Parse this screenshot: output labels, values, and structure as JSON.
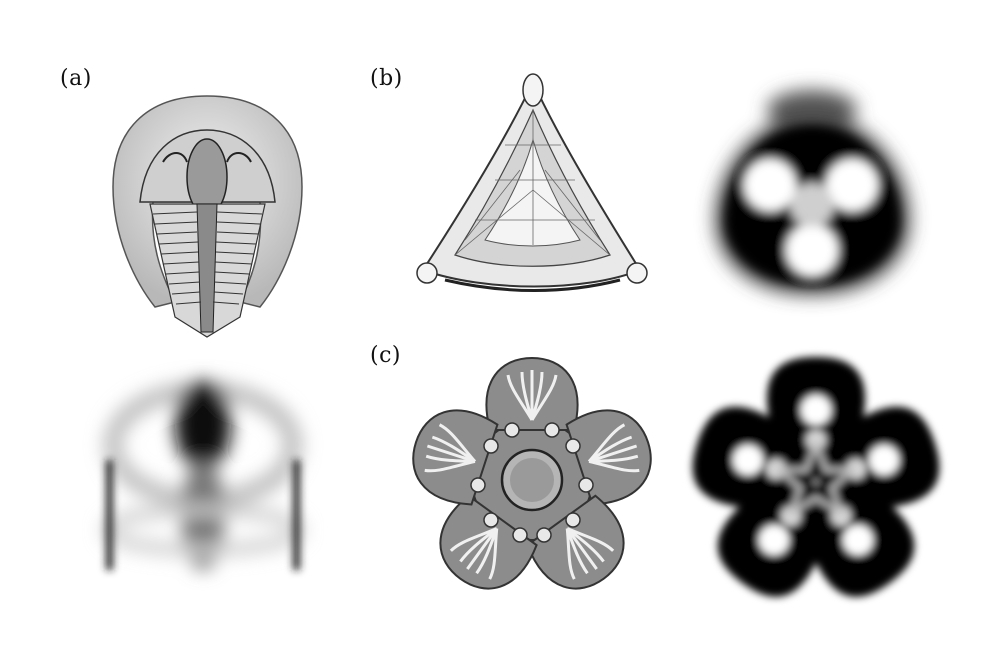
{
  "labels": {
    "a": "(a)",
    "b": "(b)",
    "c": "(c)"
  }
}
